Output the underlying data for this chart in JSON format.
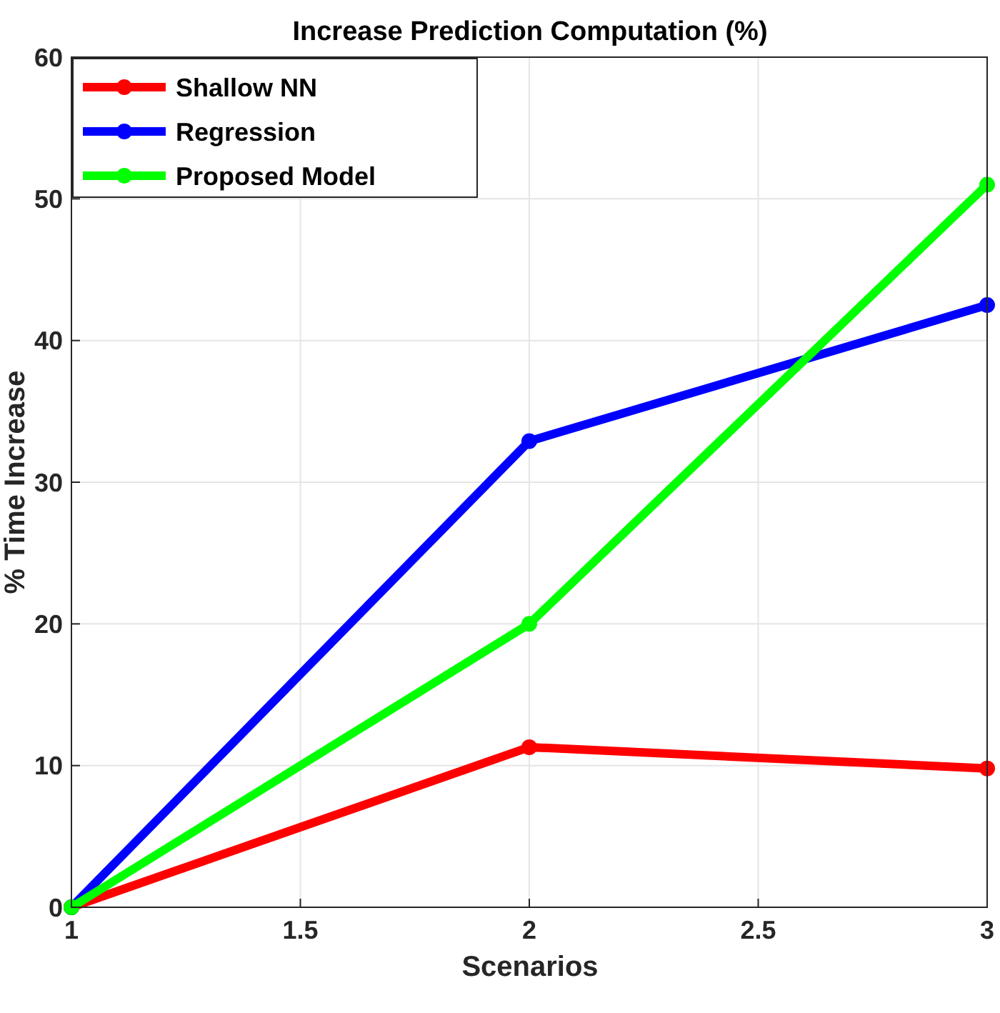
{
  "chart_data": {
    "type": "line",
    "title": "Increase Prediction Computation (%)",
    "xlabel": "Scenarios",
    "ylabel": "% Time Increase",
    "x": [
      1,
      2,
      3
    ],
    "series": [
      {
        "name": "Shallow NN",
        "color": "#ff0000",
        "values": [
          0,
          11.3,
          9.8
        ]
      },
      {
        "name": "Regression",
        "color": "#0000ff",
        "values": [
          0,
          32.9,
          42.5
        ]
      },
      {
        "name": "Proposed Model",
        "color": "#00ff00",
        "values": [
          0,
          20,
          51
        ]
      }
    ],
    "xlim": [
      1,
      3
    ],
    "xticks": [
      1,
      1.5,
      2,
      2.5,
      3
    ],
    "ylim": [
      0,
      60
    ],
    "yticks": [
      0,
      10,
      20,
      30,
      40,
      50,
      60
    ],
    "grid": true,
    "legend": "top left",
    "marker": "circle",
    "line_style": "solid"
  }
}
